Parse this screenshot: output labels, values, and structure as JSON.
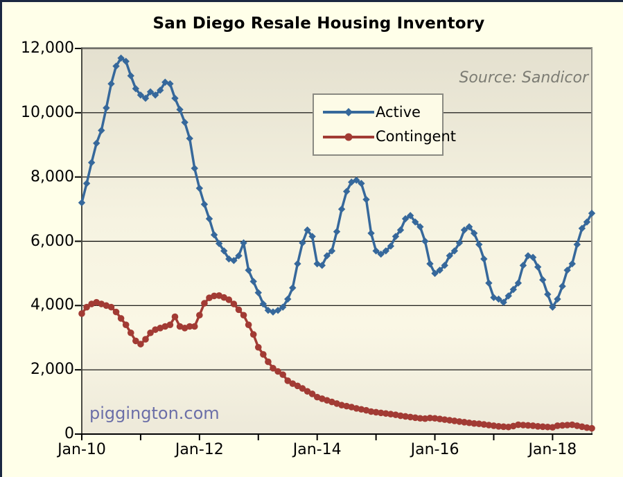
{
  "header": {
    "title": "San Diego Resale Housing Inventory"
  },
  "annotations": {
    "source": "Source: Sandicor",
    "watermark": "piggington.com"
  },
  "colors": {
    "page_background": "#FFFFE9",
    "window_edge": "#1B2841",
    "plot_gradient_top": "#E4E0CF",
    "plot_gradient_mid": "#F7F4E2",
    "plot_gradient_bottom": "#EDE9D9",
    "plot_border": "#8F8F87",
    "gridline": "#000000",
    "active_series": "#36689B",
    "contingent_series": "#A23B34",
    "source_text": "#7C7C74",
    "watermark_text": "#6B6FA8",
    "legend_background": "#FDFBE7",
    "legend_border": "#8A8A82"
  },
  "chart_data": {
    "type": "line",
    "title": "San Diego Resale Housing Inventory",
    "source_note": "Source: Sandicor",
    "watermark": "piggington.com",
    "frequency": "monthly",
    "x_start_month": "Jan-2010",
    "x_end_month": "Sep-2018",
    "x_tick_labels": [
      "Jan-10",
      "Jan-12",
      "Jan-14",
      "Jan-16",
      "Jan-18"
    ],
    "x_label_indices": [
      0,
      24,
      48,
      72,
      96
    ],
    "x_tick_indices": [
      0,
      12,
      24,
      36,
      48,
      60,
      72,
      84,
      96
    ],
    "ylim": [
      0,
      12000
    ],
    "y_ticks": [
      0,
      2000,
      4000,
      6000,
      8000,
      10000,
      12000
    ],
    "y_tick_labels": [
      "0",
      "2,000",
      "4,000",
      "6,000",
      "8,000",
      "10,000",
      "12,000"
    ],
    "grid": true,
    "legend_position": "upper-center",
    "series": [
      {
        "name": "Active",
        "color": "#36689B",
        "marker": "diamond",
        "values": [
          7200,
          7800,
          8450,
          9050,
          9450,
          10150,
          10900,
          11450,
          11700,
          11600,
          11150,
          10750,
          10550,
          10450,
          10650,
          10550,
          10700,
          10950,
          10900,
          10450,
          10100,
          9700,
          9200,
          8270,
          7650,
          7150,
          6700,
          6200,
          5930,
          5700,
          5450,
          5400,
          5550,
          5950,
          5100,
          4750,
          4400,
          4050,
          3850,
          3800,
          3850,
          3950,
          4200,
          4550,
          5300,
          5950,
          6350,
          6150,
          5300,
          5250,
          5550,
          5700,
          6300,
          7000,
          7550,
          7840,
          7900,
          7800,
          7300,
          6250,
          5700,
          5600,
          5700,
          5850,
          6150,
          6350,
          6700,
          6800,
          6600,
          6450,
          6000,
          5300,
          5000,
          5100,
          5250,
          5550,
          5700,
          5950,
          6350,
          6450,
          6250,
          5900,
          5450,
          4700,
          4250,
          4200,
          4100,
          4300,
          4500,
          4700,
          5250,
          5550,
          5500,
          5200,
          4800,
          4350,
          3950,
          4200,
          4600,
          5100,
          5300,
          5900,
          6400,
          6600,
          6870
        ]
      },
      {
        "name": "Contingent",
        "color": "#A23B34",
        "marker": "circle",
        "values": [
          3750,
          3950,
          4050,
          4100,
          4050,
          4000,
          3950,
          3800,
          3600,
          3400,
          3150,
          2900,
          2800,
          2950,
          3150,
          3250,
          3300,
          3350,
          3400,
          3650,
          3350,
          3300,
          3350,
          3350,
          3700,
          4070,
          4240,
          4300,
          4310,
          4250,
          4180,
          4050,
          3870,
          3700,
          3400,
          3100,
          2700,
          2480,
          2250,
          2050,
          1950,
          1850,
          1660,
          1570,
          1500,
          1420,
          1330,
          1250,
          1150,
          1100,
          1050,
          1000,
          950,
          900,
          870,
          840,
          800,
          770,
          740,
          700,
          680,
          660,
          640,
          620,
          600,
          570,
          550,
          530,
          510,
          490,
          480,
          500,
          490,
          470,
          450,
          430,
          410,
          390,
          370,
          350,
          330,
          320,
          300,
          280,
          260,
          240,
          230,
          220,
          250,
          290,
          280,
          270,
          260,
          240,
          230,
          220,
          210,
          260,
          270,
          280,
          290,
          260,
          230,
          200,
          180
        ]
      }
    ]
  }
}
